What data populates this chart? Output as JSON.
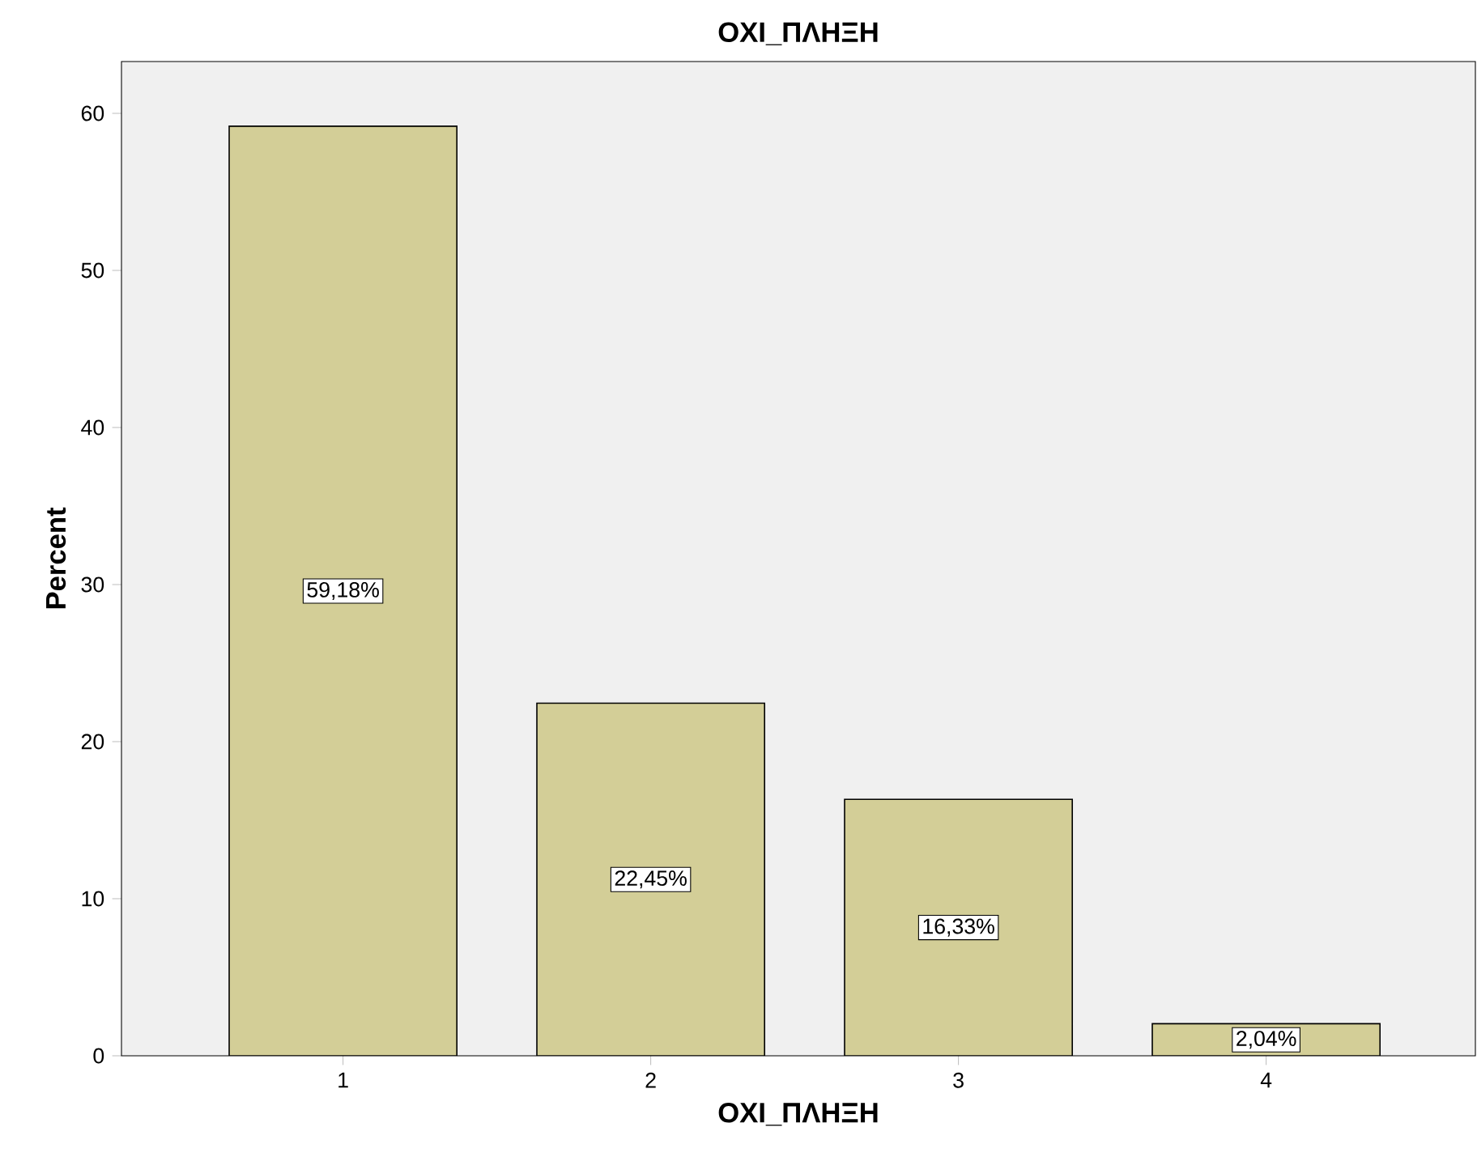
{
  "chart_data": {
    "type": "bar",
    "title": "ΟΧΙ_ΠΛΗΞΗ",
    "xlabel": "ΟΧΙ_ΠΛΗΞΗ",
    "ylabel": "Percent",
    "categories": [
      "1",
      "2",
      "3",
      "4"
    ],
    "values": [
      59.18,
      22.45,
      16.33,
      2.04
    ],
    "value_labels": [
      "59,18%",
      "22,45%",
      "16,33%",
      "2,04%"
    ],
    "color": "#d3ce97",
    "ylim": [
      0,
      63.3
    ],
    "yticks": [
      0,
      10,
      20,
      30,
      40,
      50,
      60
    ]
  }
}
